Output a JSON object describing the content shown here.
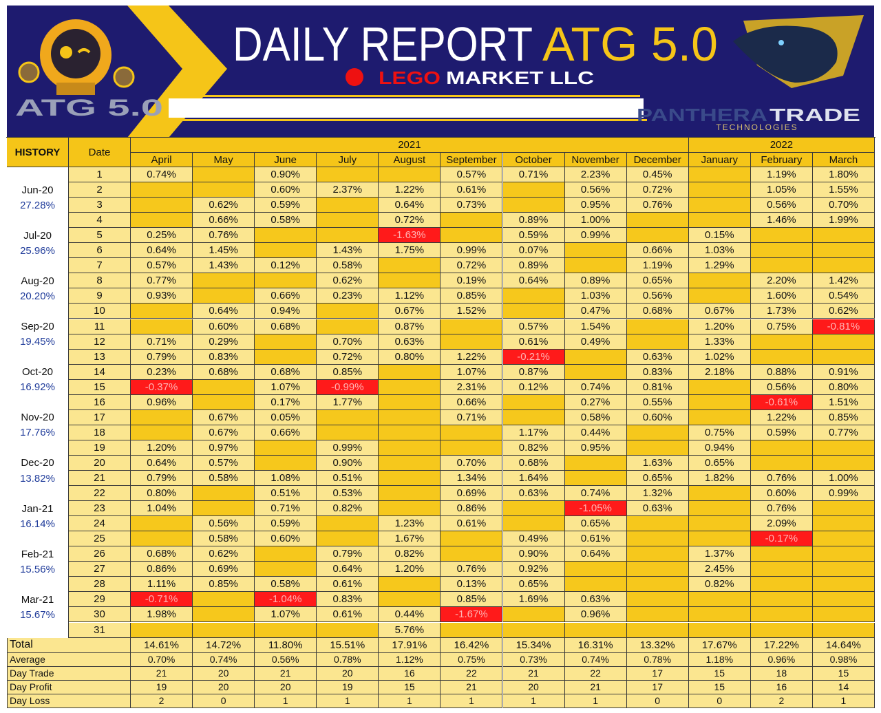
{
  "header": {
    "title_main": "DAILY REPORT",
    "title_accent": "ATG 5.0",
    "brand_red": "LEGO",
    "brand_white": "MARKET LLC",
    "left_logo": "ATG 5.0",
    "right_logo_a": "PANTHERA",
    "right_logo_b": "TRADE",
    "right_logo_sub": "TECHNOLOGIES"
  },
  "table": {
    "history_header": "HISTORY",
    "date_header": "Date",
    "years": [
      {
        "label": "2021",
        "span": 9
      },
      {
        "label": "2022",
        "span": 3
      }
    ],
    "months": [
      "April",
      "May",
      "June",
      "July",
      "August",
      "September",
      "October",
      "November",
      "December",
      "January",
      "February",
      "March"
    ],
    "history": [
      {
        "period": "Jun-20",
        "value": "27.28%"
      },
      {
        "period": "Jul-20",
        "value": "25.96%"
      },
      {
        "period": "Aug-20",
        "value": "20.20%"
      },
      {
        "period": "Sep-20",
        "value": "19.45%"
      },
      {
        "period": "Oct-20",
        "value": "16.92%"
      },
      {
        "period": "Nov-20",
        "value": "17.76%"
      },
      {
        "period": "Dec-20",
        "value": "13.82%"
      },
      {
        "period": "Jan-21",
        "value": "16.14%"
      },
      {
        "period": "Feb-21",
        "value": "15.56%"
      },
      {
        "period": "Mar-21",
        "value": "15.67%"
      }
    ],
    "rows": [
      {
        "day": "1",
        "cells": [
          "0.74%",
          null,
          "0.90%",
          null,
          null,
          "0.57%",
          "0.71%",
          "2.23%",
          "0.45%",
          null,
          "1.19%",
          "1.80%"
        ]
      },
      {
        "day": "2",
        "cells": [
          null,
          null,
          "0.60%",
          "2.37%",
          "1.22%",
          "0.61%",
          null,
          "0.56%",
          "0.72%",
          null,
          "1.05%",
          "1.55%"
        ]
      },
      {
        "day": "3",
        "cells": [
          null,
          "0.62%",
          "0.59%",
          null,
          "0.64%",
          "0.73%",
          null,
          "0.95%",
          "0.76%",
          null,
          "0.56%",
          "0.70%"
        ]
      },
      {
        "day": "4",
        "cells": [
          null,
          "0.66%",
          "0.58%",
          null,
          "0.72%",
          null,
          "0.89%",
          "1.00%",
          null,
          null,
          "1.46%",
          "1.99%"
        ]
      },
      {
        "day": "5",
        "cells": [
          "0.25%",
          "0.76%",
          null,
          null,
          "-1.63%",
          null,
          "0.59%",
          "0.99%",
          null,
          "0.15%",
          null,
          null
        ]
      },
      {
        "day": "6",
        "cells": [
          "0.64%",
          "1.45%",
          null,
          "1.43%",
          "1.75%",
          "0.99%",
          "0.07%",
          null,
          "0.66%",
          "1.03%",
          null,
          null
        ]
      },
      {
        "day": "7",
        "cells": [
          "0.57%",
          "1.43%",
          "0.12%",
          "0.58%",
          null,
          "0.72%",
          "0.89%",
          null,
          "1.19%",
          "1.29%",
          null,
          null
        ]
      },
      {
        "day": "8",
        "cells": [
          "0.77%",
          null,
          null,
          "0.62%",
          null,
          "0.19%",
          "0.64%",
          "0.89%",
          "0.65%",
          null,
          "2.20%",
          "1.42%"
        ]
      },
      {
        "day": "9",
        "cells": [
          "0.93%",
          null,
          "0.66%",
          "0.23%",
          "1.12%",
          "0.85%",
          null,
          "1.03%",
          "0.56%",
          null,
          "1.60%",
          "0.54%"
        ]
      },
      {
        "day": "10",
        "cells": [
          null,
          "0.64%",
          "0.94%",
          null,
          "0.67%",
          "1.52%",
          null,
          "0.47%",
          "0.68%",
          "0.67%",
          "1.73%",
          "0.62%"
        ]
      },
      {
        "day": "11",
        "cells": [
          null,
          "0.60%",
          "0.68%",
          null,
          "0.87%",
          null,
          "0.57%",
          "1.54%",
          null,
          "1.20%",
          "0.75%",
          "-0.81%"
        ]
      },
      {
        "day": "12",
        "cells": [
          "0.71%",
          "0.29%",
          null,
          "0.70%",
          "0.63%",
          null,
          "0.61%",
          "0.49%",
          null,
          "1.33%",
          null,
          null
        ]
      },
      {
        "day": "13",
        "cells": [
          "0.79%",
          "0.83%",
          null,
          "0.72%",
          "0.80%",
          "1.22%",
          "-0.21%",
          null,
          "0.63%",
          "1.02%",
          null,
          null
        ]
      },
      {
        "day": "14",
        "cells": [
          "0.23%",
          "0.68%",
          "0.68%",
          "0.85%",
          null,
          "1.07%",
          "0.87%",
          null,
          "0.83%",
          "2.18%",
          "0.88%",
          "0.91%"
        ]
      },
      {
        "day": "15",
        "cells": [
          "-0.37%",
          null,
          "1.07%",
          "-0.99%",
          null,
          "2.31%",
          "0.12%",
          "0.74%",
          "0.81%",
          null,
          "0.56%",
          "0.80%"
        ]
      },
      {
        "day": "16",
        "cells": [
          "0.96%",
          null,
          "0.17%",
          "1.77%",
          null,
          "0.66%",
          null,
          "0.27%",
          "0.55%",
          null,
          "-0.61%",
          "1.51%"
        ]
      },
      {
        "day": "17",
        "cells": [
          null,
          "0.67%",
          "0.05%",
          null,
          null,
          "0.71%",
          null,
          "0.58%",
          "0.60%",
          null,
          "1.22%",
          "0.85%"
        ]
      },
      {
        "day": "18",
        "cells": [
          null,
          "0.67%",
          "0.66%",
          null,
          null,
          null,
          "1.17%",
          "0.44%",
          null,
          "0.75%",
          "0.59%",
          "0.77%"
        ]
      },
      {
        "day": "19",
        "cells": [
          "1.20%",
          "0.97%",
          null,
          "0.99%",
          null,
          null,
          "0.82%",
          "0.95%",
          null,
          "0.94%",
          null,
          null
        ]
      },
      {
        "day": "20",
        "cells": [
          "0.64%",
          "0.57%",
          null,
          "0.90%",
          null,
          "0.70%",
          "0.68%",
          null,
          "1.63%",
          "0.65%",
          null,
          null
        ]
      },
      {
        "day": "21",
        "cells": [
          "0.79%",
          "0.58%",
          "1.08%",
          "0.51%",
          null,
          "1.34%",
          "1.64%",
          null,
          "0.65%",
          "1.82%",
          "0.76%",
          "1.00%"
        ]
      },
      {
        "day": "22",
        "cells": [
          "0.80%",
          null,
          "0.51%",
          "0.53%",
          null,
          "0.69%",
          "0.63%",
          "0.74%",
          "1.32%",
          null,
          "0.60%",
          "0.99%"
        ]
      },
      {
        "day": "23",
        "cells": [
          "1.04%",
          null,
          "0.71%",
          "0.82%",
          null,
          "0.86%",
          null,
          "-1.05%",
          "0.63%",
          null,
          "0.76%",
          null
        ]
      },
      {
        "day": "24",
        "cells": [
          null,
          "0.56%",
          "0.59%",
          null,
          "1.23%",
          "0.61%",
          null,
          "0.65%",
          null,
          null,
          "2.09%",
          null
        ]
      },
      {
        "day": "25",
        "cells": [
          null,
          "0.58%",
          "0.60%",
          null,
          "1.67%",
          null,
          "0.49%",
          "0.61%",
          null,
          null,
          "-0.17%",
          null
        ]
      },
      {
        "day": "26",
        "cells": [
          "0.68%",
          "0.62%",
          null,
          "0.79%",
          "0.82%",
          null,
          "0.90%",
          "0.64%",
          null,
          "1.37%",
          null,
          null
        ]
      },
      {
        "day": "27",
        "cells": [
          "0.86%",
          "0.69%",
          null,
          "0.64%",
          "1.20%",
          "0.76%",
          "0.92%",
          null,
          null,
          "2.45%",
          null,
          null
        ]
      },
      {
        "day": "28",
        "cells": [
          "1.11%",
          "0.85%",
          "0.58%",
          "0.61%",
          null,
          "0.13%",
          "0.65%",
          null,
          null,
          "0.82%",
          null,
          null
        ]
      },
      {
        "day": "29",
        "cells": [
          "-0.71%",
          null,
          "-1.04%",
          "0.83%",
          null,
          "0.85%",
          "1.69%",
          "0.63%",
          null,
          null,
          null,
          null
        ]
      },
      {
        "day": "30",
        "cells": [
          "1.98%",
          null,
          "1.07%",
          "0.61%",
          "0.44%",
          "-1.67%",
          null,
          "0.96%",
          null,
          null,
          null,
          null
        ]
      },
      {
        "day": "31",
        "cells": [
          null,
          null,
          null,
          null,
          "5.76%",
          null,
          null,
          null,
          null,
          null,
          null,
          null
        ]
      }
    ],
    "summary": [
      {
        "label": "Total",
        "cells": [
          "14.61%",
          "14.72%",
          "11.80%",
          "15.51%",
          "17.91%",
          "16.42%",
          "15.34%",
          "16.31%",
          "13.32%",
          "17.67%",
          "17.22%",
          "14.64%"
        ]
      },
      {
        "label": "Average",
        "cells": [
          "0.70%",
          "0.74%",
          "0.56%",
          "0.78%",
          "1.12%",
          "0.75%",
          "0.73%",
          "0.74%",
          "0.78%",
          "1.18%",
          "0.96%",
          "0.98%"
        ]
      },
      {
        "label": "Day Trade",
        "cells": [
          "21",
          "20",
          "21",
          "20",
          "16",
          "22",
          "21",
          "22",
          "17",
          "15",
          "18",
          "15"
        ]
      },
      {
        "label": "Day Profit",
        "cells": [
          "19",
          "20",
          "20",
          "19",
          "15",
          "21",
          "20",
          "21",
          "17",
          "15",
          "16",
          "14"
        ]
      },
      {
        "label": "Day Loss",
        "cells": [
          "2",
          "0",
          "1",
          "1",
          "1",
          "1",
          "1",
          "1",
          "0",
          "0",
          "2",
          "1"
        ]
      }
    ]
  }
}
